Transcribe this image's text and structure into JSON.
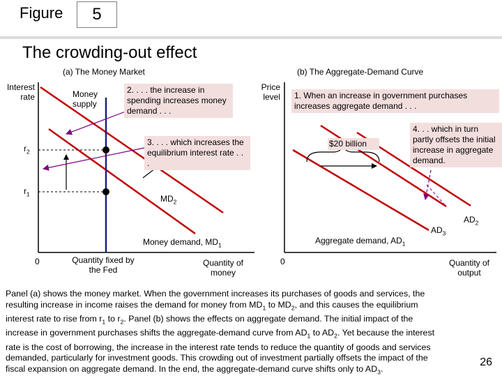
{
  "figure_label": "Figure",
  "figure_number": "5",
  "title": "The crowding-out effect",
  "panel_a": {
    "title": "(a) The Money Market",
    "y_axis_label": "Interest rate",
    "x_axis_label": "Quantity of money",
    "origin": "0",
    "money_supply_label": "Money supply",
    "quantity_fixed_label": "Quantity fixed by the Fed",
    "r1": "r",
    "r1_sub": "1",
    "r2": "r",
    "r2_sub": "2",
    "md1": "Money demand, MD",
    "md1_sub": "1",
    "md2": "MD",
    "md2_sub": "2",
    "callout_2": "2. . . . the increase in spending increases money demand . . .",
    "callout_3": "3. . . . which increases the equilibrium interest rate . . ."
  },
  "panel_b": {
    "title": "(b) The Aggregate-Demand Curve",
    "y_axis_label": "Price level",
    "x_axis_label": "Quantity of output",
    "origin": "0",
    "callout_1": "1. When an increase in government purchases increases aggregate demand . . .",
    "billion_label": "$20 billion",
    "callout_4": "4. . . which in turn partly offsets the initial increase in aggregate demand.",
    "ad1": "Aggregate demand, AD",
    "ad1_sub": "1",
    "ad2": "AD",
    "ad2_sub": "2",
    "ad3": "AD",
    "ad3_sub": "3"
  },
  "caption": {
    "line1": "Panel (a) shows the money market. When the government increases its purchases of goods and services, the",
    "l2a": "resulting increase in income raises the demand for money from MD",
    "l2s1": "1",
    "l2b": " to MD",
    "l2s2": "2",
    "l2c": ", and this causes the equilibrium",
    "l3a": "interest rate to rise from r",
    "l3s1": "1",
    "l3b": " to r",
    "l3s2": "2",
    "l3c": ". Panel (b) shows the effects on aggregate demand. The initial impact of the",
    "l4a": "increase in government purchases shifts the aggregate-demand curve from AD",
    "l4s1": "1",
    "l4b": " to AD",
    "l4s2": "2",
    "l4c": ". Yet because the interest",
    "line5": "rate is the cost of borrowing, the increase in the interest rate tends to reduce the quantity of goods and services",
    "line6": "demanded, particularly for investment goods. This crowding out of investment partially offsets the impact of the",
    "l7a": "fiscal expansion on aggregate demand. In the end, the aggregate-demand curve shifts only to AD",
    "l7s1": "3",
    "l7b": "."
  },
  "page_number": "26",
  "colors": {
    "demand_line": "#c00000",
    "supply_line": "#1f1f8c",
    "callout_bg": "#f3dede",
    "arrow": "#800080"
  }
}
